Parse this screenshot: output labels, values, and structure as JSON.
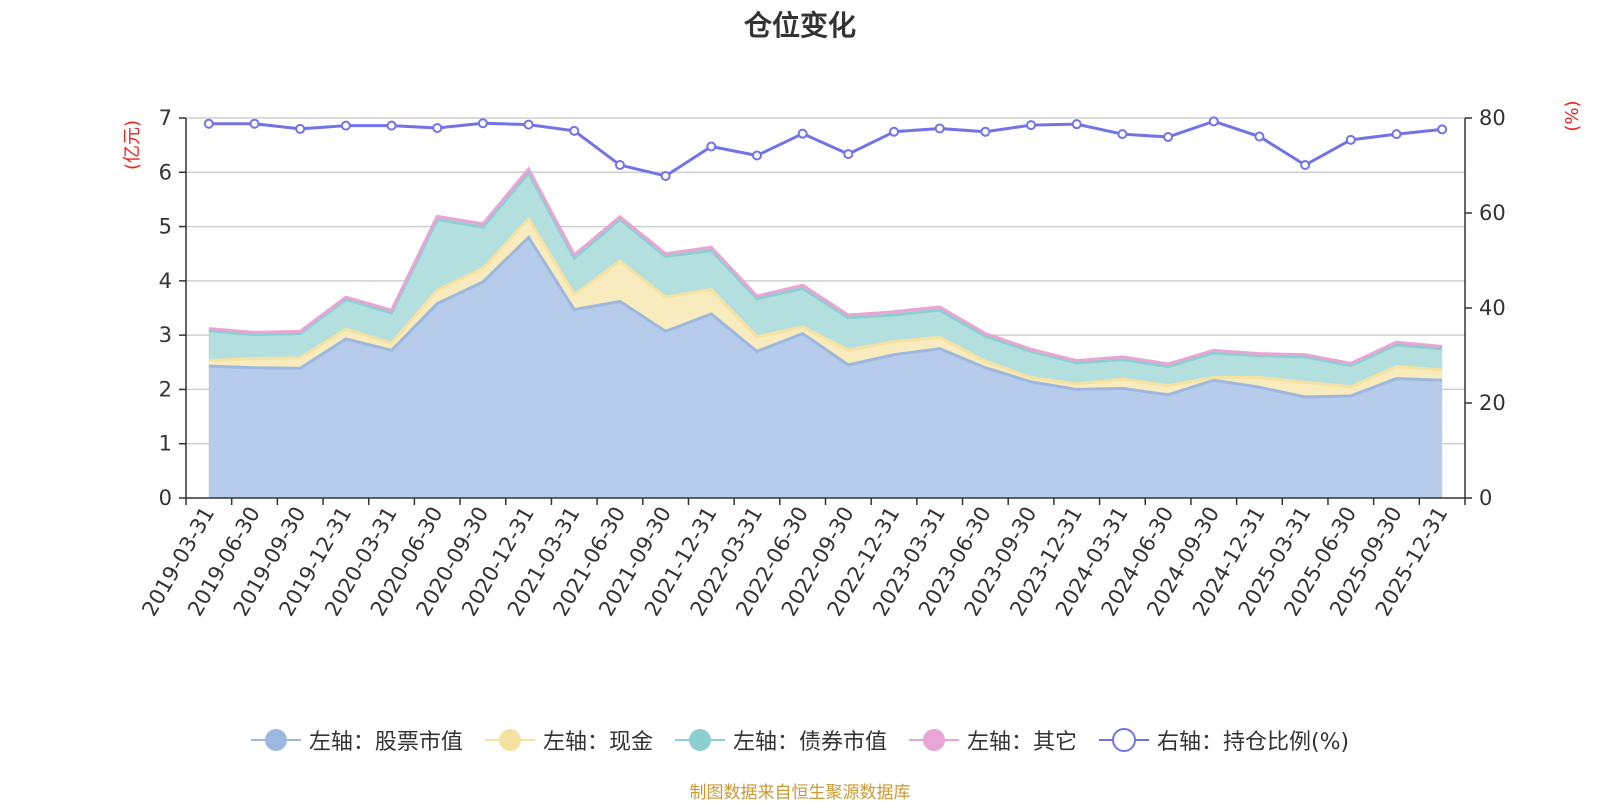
{
  "chart_data": {
    "type": "area",
    "title": "仓位变化",
    "source": "制图数据来自恒生聚源数据库",
    "left_unit": "(亿元)",
    "right_unit": "(%)",
    "ylim_left": [
      0,
      7
    ],
    "yticks_left": [
      0,
      1,
      2,
      3,
      4,
      5,
      6,
      7
    ],
    "ylim_right": [
      0,
      80
    ],
    "yticks_right": [
      0,
      20,
      40,
      60,
      80
    ],
    "categories": [
      "2019-03-31",
      "2019-06-30",
      "2019-09-30",
      "2019-12-31",
      "2020-03-31",
      "2020-06-30",
      "2020-09-30",
      "2020-12-31",
      "2021-03-31",
      "2021-06-30",
      "2021-09-30",
      "2021-12-31",
      "2022-03-31",
      "2022-06-30",
      "2022-09-30",
      "2022-12-31",
      "2023-03-31",
      "2023-06-30",
      "2023-09-30",
      "2023-12-31",
      "2024-03-31",
      "2024-06-30",
      "2024-09-30",
      "2024-12-31",
      "2025-03-31",
      "2025-06-30",
      "2025-09-30",
      "2025-12-31"
    ],
    "series": [
      {
        "name": "左轴：股票市值",
        "axis": "left",
        "stack": true,
        "color": "#9db8e0",
        "fill": "#b7cbea",
        "values": [
          2.43,
          2.4,
          2.39,
          2.93,
          2.72,
          3.58,
          3.98,
          4.8,
          3.47,
          3.62,
          3.07,
          3.39,
          2.7,
          3.03,
          2.45,
          2.64,
          2.75,
          2.4,
          2.14,
          2.0,
          2.02,
          1.9,
          2.17,
          2.04,
          1.86,
          1.88,
          2.2,
          2.17
        ]
      },
      {
        "name": "左轴：现金",
        "axis": "left",
        "stack": true,
        "color": "#f6e2a0",
        "fill": "#f8ebbe",
        "values": [
          0.1,
          0.17,
          0.19,
          0.18,
          0.13,
          0.25,
          0.25,
          0.34,
          0.28,
          0.74,
          0.63,
          0.45,
          0.27,
          0.12,
          0.28,
          0.24,
          0.21,
          0.12,
          0.08,
          0.1,
          0.17,
          0.17,
          0.05,
          0.18,
          0.27,
          0.17,
          0.22,
          0.19
        ]
      },
      {
        "name": "左轴：债券市值",
        "axis": "left",
        "stack": true,
        "color": "#8ccfd0",
        "fill": "#b3e0df",
        "values": [
          0.55,
          0.44,
          0.45,
          0.55,
          0.56,
          1.3,
          0.76,
          0.85,
          0.67,
          0.77,
          0.75,
          0.72,
          0.7,
          0.71,
          0.59,
          0.49,
          0.5,
          0.46,
          0.48,
          0.39,
          0.36,
          0.35,
          0.45,
          0.4,
          0.47,
          0.39,
          0.4,
          0.39
        ]
      },
      {
        "name": "左轴：其它",
        "axis": "left",
        "stack": true,
        "color": "#e8a5d5",
        "fill": "#ecc0e0",
        "values": [
          0.04,
          0.04,
          0.04,
          0.04,
          0.05,
          0.06,
          0.06,
          0.07,
          0.06,
          0.05,
          0.05,
          0.06,
          0.05,
          0.06,
          0.05,
          0.06,
          0.06,
          0.05,
          0.04,
          0.04,
          0.05,
          0.05,
          0.05,
          0.04,
          0.04,
          0.04,
          0.05,
          0.04
        ]
      },
      {
        "name": "右轴：持仓比例(%)",
        "axis": "right",
        "type": "line",
        "color": "#7373e8",
        "values": [
          78.8,
          78.8,
          77.7,
          78.4,
          78.4,
          77.9,
          78.9,
          78.6,
          77.3,
          70.1,
          67.8,
          74.0,
          72.1,
          76.7,
          72.4,
          77.1,
          77.8,
          77.1,
          78.5,
          78.7,
          76.6,
          76.0,
          79.3,
          76.1,
          70.1,
          75.4,
          76.6,
          77.6
        ]
      }
    ]
  }
}
